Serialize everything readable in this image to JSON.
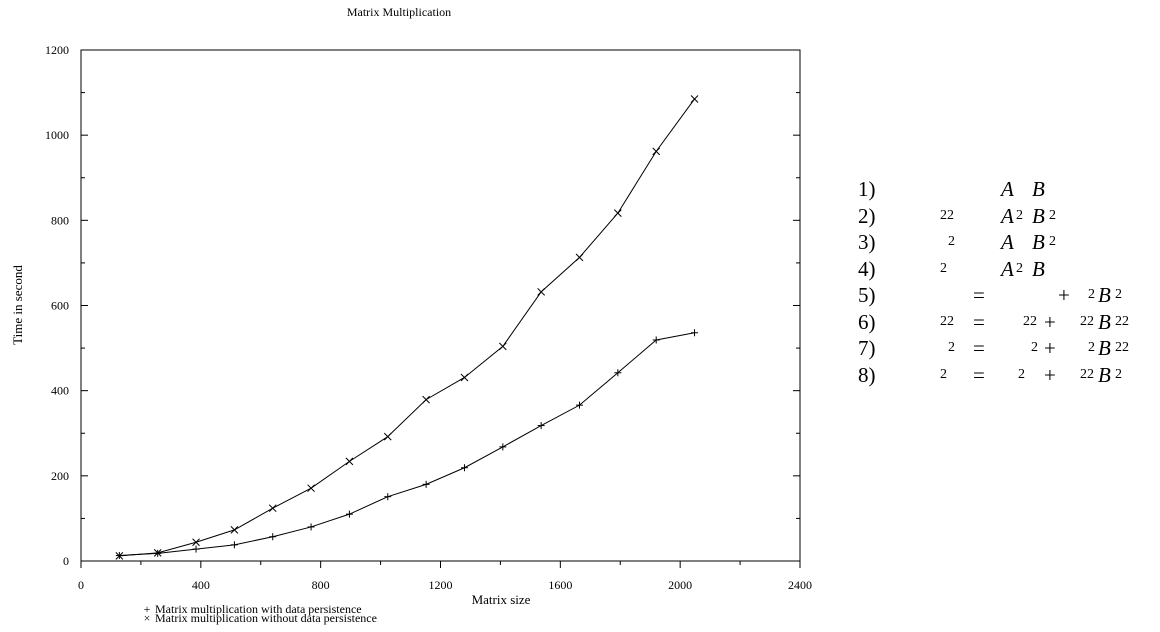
{
  "chart_data": {
    "type": "line",
    "title": "Matrix Multiplication",
    "xlabel": "Matrix size",
    "ylabel": "Time in second",
    "xlim": [
      0,
      2400
    ],
    "ylim": [
      0,
      1200
    ],
    "x_ticks": [
      0,
      400,
      800,
      1200,
      1600,
      2000,
      2400
    ],
    "y_ticks": [
      0,
      200,
      400,
      600,
      800,
      1000,
      1200
    ],
    "x_tick_labels": [
      "0",
      "400",
      "800",
      "1200",
      "1600",
      "2000",
      "2400"
    ],
    "y_tick_labels": [
      "0",
      "200",
      "400",
      "600",
      "800",
      "1000",
      "1200"
    ],
    "grid": false,
    "legend_position": "bottom-left",
    "x": [
      128,
      256,
      384,
      512,
      640,
      768,
      896,
      1024,
      1152,
      1280,
      1408,
      1536,
      1664,
      1792,
      1920,
      2048
    ],
    "series": [
      {
        "name": "Matrix multiplication with data persistence",
        "marker": "+",
        "legend_symbol": "+",
        "values": [
          13,
          18,
          28,
          38,
          57,
          80,
          110,
          151,
          180,
          219,
          268,
          318,
          366,
          442,
          519,
          536
        ]
      },
      {
        "name": "Matrix multiplication without data persistence",
        "marker": "x",
        "legend_symbol": "×",
        "values": [
          12,
          19,
          44,
          73,
          124,
          171,
          234,
          292,
          379,
          431,
          504,
          632,
          713,
          817,
          962,
          1085
        ]
      }
    ]
  },
  "equations": [
    {
      "num": "1)",
      "parts": [
        {
          "t": "A",
          "it": true,
          "x": 143
        },
        {
          "t": "B",
          "it": true,
          "x": 174
        }
      ]
    },
    {
      "num": "2)",
      "parts": [
        {
          "t": "22",
          "small": true,
          "x": 82
        },
        {
          "t": "A",
          "it": true,
          "x": 143
        },
        {
          "t": "2",
          "sub": true,
          "x": 158
        },
        {
          "t": "B",
          "it": true,
          "x": 174
        },
        {
          "t": "2",
          "sub": true,
          "x": 191
        }
      ]
    },
    {
      "num": "3)",
      "parts": [
        {
          "t": "2",
          "small": true,
          "x": 90
        },
        {
          "t": "A",
          "it": true,
          "x": 143
        },
        {
          "t": "B",
          "it": true,
          "x": 174
        },
        {
          "t": "2",
          "sub": true,
          "x": 191
        }
      ]
    },
    {
      "num": "4)",
      "parts": [
        {
          "t": "2",
          "small": true,
          "x": 82
        },
        {
          "t": "A",
          "it": true,
          "x": 143
        },
        {
          "t": "2",
          "sub": true,
          "x": 158
        },
        {
          "t": "B",
          "it": true,
          "x": 174
        }
      ]
    },
    {
      "num": "5)",
      "parts": [
        {
          "t": "=",
          "x": 115
        },
        {
          "t": "+",
          "x": 200
        },
        {
          "t": "2",
          "small": true,
          "x": 230
        },
        {
          "t": "B",
          "it": true,
          "x": 240
        },
        {
          "t": "2",
          "sub": true,
          "x": 257
        }
      ]
    },
    {
      "num": "6)",
      "parts": [
        {
          "t": "22",
          "small": true,
          "x": 82
        },
        {
          "t": "=",
          "x": 115
        },
        {
          "t": "22",
          "small": true,
          "x": 165
        },
        {
          "t": "+",
          "x": 186
        },
        {
          "t": "22",
          "small": true,
          "x": 222
        },
        {
          "t": "B",
          "it": true,
          "x": 240
        },
        {
          "t": "22",
          "sub": true,
          "x": 257
        }
      ]
    },
    {
      "num": "7)",
      "parts": [
        {
          "t": "2",
          "small": true,
          "x": 90
        },
        {
          "t": "=",
          "x": 115
        },
        {
          "t": "2",
          "small": true,
          "x": 173
        },
        {
          "t": "+",
          "x": 186
        },
        {
          "t": "2",
          "small": true,
          "x": 230
        },
        {
          "t": "B",
          "it": true,
          "x": 240
        },
        {
          "t": "22",
          "sub": true,
          "x": 257
        }
      ]
    },
    {
      "num": "8)",
      "parts": [
        {
          "t": "2",
          "small": true,
          "x": 82
        },
        {
          "t": "=",
          "x": 115
        },
        {
          "t": "2",
          "small": true,
          "x": 160
        },
        {
          "t": "+",
          "x": 186
        },
        {
          "t": "22",
          "small": true,
          "x": 222
        },
        {
          "t": "B",
          "it": true,
          "x": 240
        },
        {
          "t": "2",
          "sub": true,
          "x": 257
        }
      ]
    }
  ]
}
